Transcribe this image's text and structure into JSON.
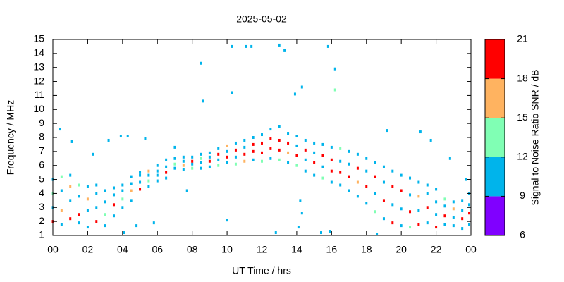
{
  "chart_data": {
    "type": "scatter",
    "title": "2025-05-02",
    "xlabel": "UT Time / hrs",
    "ylabel": "Frequency / MHz",
    "xlim": [
      0,
      24
    ],
    "xticks": [
      {
        "value": 0,
        "label": "00"
      },
      {
        "value": 2,
        "label": "02"
      },
      {
        "value": 4,
        "label": "04"
      },
      {
        "value": 6,
        "label": "06"
      },
      {
        "value": 8,
        "label": "08"
      },
      10,
      12,
      14,
      16,
      18,
      20,
      22,
      {
        "value": 24,
        "label": "00"
      }
    ],
    "ylim": [
      1,
      15
    ],
    "yticks": [
      1,
      2,
      3,
      4,
      5,
      6,
      7,
      8,
      9,
      10,
      11,
      12,
      13,
      14,
      15
    ],
    "colorbar": {
      "label": "Signal to Noise Ratio SNR / dB",
      "lim": [
        6,
        21
      ],
      "ticks": [
        6,
        9,
        12,
        15,
        18,
        21
      ],
      "colors": [
        "#8000ff",
        "#00b4eb",
        "#80ffb4",
        "#ffb360",
        "#ff0000"
      ]
    },
    "x": [
      0,
      0,
      0,
      0,
      0.5,
      0.5,
      0.5,
      0.5,
      1,
      1,
      1,
      1,
      1.5,
      1.5,
      1.5,
      1.5,
      2,
      2,
      2,
      2,
      2.5,
      2.5,
      2.5,
      2.5,
      3,
      3,
      3,
      3,
      3.5,
      3.5,
      3.5,
      3.5,
      4,
      4,
      4,
      4,
      4.5,
      4.5,
      4.5,
      4.5,
      5,
      5,
      5,
      5,
      5.5,
      5.5,
      5.5,
      5.5,
      6,
      6,
      6,
      6,
      6.5,
      6.5,
      6.5,
      6.5,
      7,
      7,
      7,
      7,
      7.5,
      7.5,
      7.5,
      7.5,
      8,
      8,
      8,
      8,
      8.5,
      8.5,
      8.5,
      8.5,
      9,
      9,
      9,
      9,
      9.5,
      9.5,
      9.5,
      9.5,
      10,
      10,
      10,
      10,
      10.5,
      10.5,
      10.5,
      10.5,
      11,
      11,
      11,
      11,
      11.5,
      11.5,
      11.5,
      11.5,
      12,
      12,
      12,
      12,
      12.5,
      12.5,
      12.5,
      12.5,
      13,
      13,
      13,
      13,
      13.5,
      13.5,
      13.5,
      13.5,
      14,
      14,
      14,
      14,
      14.5,
      14.5,
      14.5,
      14.5,
      15,
      15,
      15,
      15,
      15.5,
      15.5,
      15.5,
      15.5,
      16,
      16,
      16,
      16,
      16.5,
      16.5,
      16.5,
      16.5,
      17,
      17,
      17,
      17,
      17.5,
      17.5,
      17.5,
      17.5,
      18,
      18,
      18,
      18,
      18.5,
      18.5,
      18.5,
      18.5,
      19,
      19,
      19,
      19,
      19.5,
      19.5,
      19.5,
      19.5,
      20,
      20,
      20,
      20,
      20.5,
      20.5,
      20.5,
      20.5,
      21,
      21,
      21,
      21,
      21.5,
      21.5,
      21.5,
      21.5,
      22,
      22,
      22,
      22,
      22.5,
      22.5,
      22.5,
      22.5,
      23,
      23,
      23,
      23,
      23.5,
      23.5,
      23.5,
      23.5,
      23.9,
      23.9,
      23.9,
      23.9,
      0.4,
      8.5,
      10.3,
      11.1,
      11.4,
      13,
      13.3,
      15.8,
      16.2,
      16.2,
      10.3,
      8.6,
      13.9,
      14.3,
      10,
      12.8,
      15.4,
      15.9,
      18.6,
      14.1,
      14.3,
      14.2,
      4.8,
      5.8,
      3.9,
      4.3,
      5.3,
      2.3,
      1.1,
      3.2,
      19.2,
      21.1,
      21.7,
      22.8,
      23.7,
      7.7,
      4.1
    ],
    "values": [
      2.0,
      3.0,
      4.0,
      5.0,
      1.8,
      2.8,
      4.2,
      5.2,
      2.2,
      3.5,
      4.5,
      5.3,
      1.9,
      2.5,
      3.8,
      4.6,
      1.6,
      2.8,
      3.6,
      4.5,
      2.0,
      3.0,
      4.0,
      4.6,
      1.7,
      2.5,
      3.4,
      4.2,
      2.4,
      3.2,
      3.9,
      4.4,
      3.0,
      3.6,
      4.2,
      4.6,
      3.5,
      4.2,
      4.7,
      5.2,
      4.3,
      4.8,
      5.3,
      5.5,
      4.5,
      4.9,
      5.3,
      5.6,
      4.9,
      5.3,
      5.6,
      6.0,
      5.1,
      5.5,
      5.9,
      6.4,
      5.8,
      6.1,
      6.5,
      7.3,
      5.7,
      6.0,
      6.3,
      6.6,
      5.8,
      6.1,
      6.3,
      6.6,
      5.8,
      6.2,
      6.5,
      6.8,
      5.9,
      6.3,
      6.6,
      6.9,
      6.0,
      6.4,
      6.8,
      7.2,
      6.2,
      6.6,
      7.0,
      7.4,
      6.1,
      6.6,
      7.1,
      7.6,
      6.3,
      6.8,
      7.3,
      7.8,
      6.4,
      7.0,
      7.5,
      8.0,
      6.3,
      6.9,
      7.6,
      8.2,
      6.5,
      7.2,
      7.9,
      8.6,
      6.4,
      7.1,
      7.8,
      8.8,
      6.2,
      6.9,
      7.6,
      8.3,
      6.0,
      6.7,
      7.4,
      8.1,
      5.6,
      6.4,
      7.1,
      7.8,
      5.3,
      6.2,
      6.9,
      7.6,
      5.1,
      5.9,
      6.7,
      7.5,
      4.8,
      5.6,
      6.4,
      7.3,
      4.6,
      5.5,
      6.3,
      7.2,
      4.2,
      5.2,
      6.1,
      7.0,
      3.8,
      4.8,
      5.8,
      6.8,
      3.3,
      4.5,
      5.6,
      6.5,
      2.7,
      4.0,
      5.2,
      6.2,
      2.2,
      3.5,
      4.8,
      5.9,
      1.9,
      3.2,
      4.5,
      5.6,
      1.7,
      2.9,
      4.2,
      5.3,
      1.6,
      2.7,
      3.9,
      5.1,
      1.8,
      2.8,
      3.8,
      4.8,
      1.9,
      3.0,
      4.0,
      4.6,
      1.6,
      2.5,
      3.4,
      4.3,
      1.8,
      2.4,
      3.1,
      3.6,
      1.7,
      2.3,
      2.9,
      3.4,
      1.5,
      2.2,
      2.8,
      3.5,
      1.8,
      2.6,
      3.2,
      4.0,
      8.6,
      13.3,
      14.5,
      14.5,
      14.5,
      14.6,
      14.2,
      14.5,
      12.9,
      11.4,
      11.2,
      10.6,
      11.1,
      11.6,
      2.1,
      1.2,
      1.2,
      1.3,
      1.1,
      1.6,
      2.6,
      3.5,
      1.7,
      1.9,
      8.1,
      8.1,
      7.9,
      6.8,
      7.7,
      7.8,
      8.5,
      8.4,
      7.8,
      6.5,
      5.0,
      4.2,
      1.2
    ],
    "snr": [
      19,
      10,
      13,
      10,
      10,
      16,
      10,
      13,
      19,
      10,
      16,
      10,
      10,
      19,
      10,
      13,
      10,
      10,
      16,
      10,
      19,
      10,
      10,
      10,
      10,
      13,
      10,
      10,
      10,
      19,
      10,
      10,
      10,
      13,
      10,
      10,
      10,
      16,
      10,
      10,
      19,
      10,
      10,
      10,
      10,
      13,
      10,
      16,
      10,
      10,
      10,
      10,
      10,
      19,
      10,
      10,
      10,
      13,
      10,
      10,
      10,
      16,
      10,
      10,
      13,
      10,
      19,
      10,
      10,
      10,
      13,
      10,
      10,
      19,
      10,
      10,
      13,
      10,
      19,
      10,
      10,
      19,
      10,
      16,
      13,
      10,
      19,
      10,
      16,
      19,
      10,
      10,
      10,
      19,
      19,
      10,
      13,
      19,
      19,
      10,
      10,
      19,
      19,
      10,
      13,
      19,
      19,
      10,
      10,
      16,
      19,
      10,
      13,
      19,
      10,
      10,
      10,
      10,
      19,
      10,
      10,
      19,
      10,
      10,
      13,
      10,
      19,
      10,
      10,
      19,
      19,
      10,
      10,
      19,
      10,
      13,
      10,
      19,
      10,
      10,
      10,
      16,
      19,
      10,
      10,
      19,
      10,
      10,
      13,
      10,
      19,
      10,
      10,
      19,
      10,
      10,
      19,
      10,
      19,
      10,
      10,
      10,
      19,
      10,
      13,
      19,
      10,
      10,
      19,
      10,
      16,
      10,
      10,
      19,
      10,
      10,
      19,
      10,
      10,
      10,
      10,
      19,
      10,
      13,
      10,
      10,
      16,
      10,
      10,
      19,
      10,
      10,
      10,
      19,
      10,
      10,
      10,
      10,
      10,
      10,
      10,
      10,
      10,
      10,
      10,
      13,
      10,
      10,
      10,
      10,
      10,
      10,
      10,
      10,
      10,
      10,
      10,
      10,
      10,
      10,
      10,
      10,
      10,
      10,
      10,
      10,
      10,
      10,
      10,
      10,
      10,
      10,
      10
    ]
  }
}
